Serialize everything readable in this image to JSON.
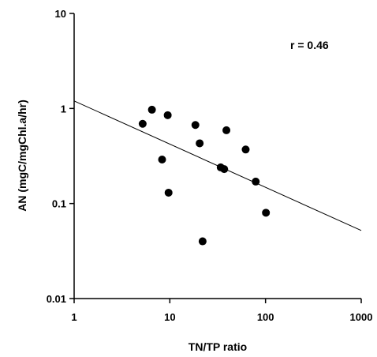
{
  "chart_data": {
    "type": "scatter",
    "title": "",
    "xlabel": "TN/TP ratio",
    "ylabel": "AN (mgC/mgChl.a/hr)",
    "xscale": "log",
    "yscale": "log",
    "xlim": [
      1,
      1000
    ],
    "ylim": [
      0.01,
      10
    ],
    "x_ticks": [
      1,
      10,
      100,
      1000
    ],
    "x_tick_labels": [
      "1",
      "10",
      "100",
      "1000"
    ],
    "y_ticks": [
      0.01,
      0.1,
      1,
      10
    ],
    "y_tick_labels": [
      "0.01",
      "0.1",
      "1",
      "10"
    ],
    "grid": false,
    "legend": "none",
    "annotations": [
      {
        "text": "r = 0.46",
        "position": "top-right"
      }
    ],
    "series": [
      {
        "points": [
          {
            "x": 5.2,
            "y": 0.69
          },
          {
            "x": 6.5,
            "y": 0.97
          },
          {
            "x": 8.3,
            "y": 0.29
          },
          {
            "x": 9.5,
            "y": 0.85
          },
          {
            "x": 9.7,
            "y": 0.13
          },
          {
            "x": 18.5,
            "y": 0.67
          },
          {
            "x": 20.5,
            "y": 0.43
          },
          {
            "x": 22,
            "y": 0.04
          },
          {
            "x": 34,
            "y": 0.24
          },
          {
            "x": 37,
            "y": 0.23
          },
          {
            "x": 39,
            "y": 0.59
          },
          {
            "x": 62,
            "y": 0.37
          },
          {
            "x": 79,
            "y": 0.17
          },
          {
            "x": 101,
            "y": 0.08
          }
        ],
        "marker_color": "#000000"
      }
    ],
    "trendline": {
      "from": {
        "x": 1,
        "y": 1.2
      },
      "to": {
        "x": 1000,
        "y": 0.052
      },
      "color": "#000000"
    }
  }
}
